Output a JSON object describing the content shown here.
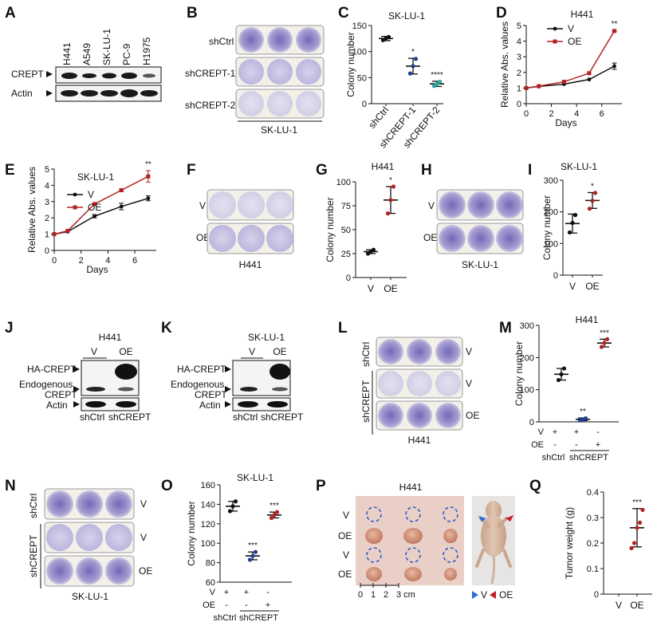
{
  "colors": {
    "V": "#111111",
    "OE": "#b22222",
    "sh1": "#1f3f8f",
    "sh2": "#2aa7a0",
    "stain": "#4b3f9c",
    "blueCircle": "#2b5cc8",
    "arrowBlue": "#2b6cd6",
    "arrowRed": "#c0202a"
  },
  "panels": {
    "A": "A",
    "B": "B",
    "C": "C",
    "D": "D",
    "E": "E",
    "F": "F",
    "G": "G",
    "H": "H",
    "I": "I",
    "J": "J",
    "K": "K",
    "L": "L",
    "M": "M",
    "N": "N",
    "O": "O",
    "P": "P",
    "Q": "Q"
  },
  "A": {
    "lanes": [
      "H441",
      "A549",
      "SK-LU-1",
      "PC-9",
      "H1975"
    ],
    "rows": [
      "CREPT",
      "Actin"
    ]
  },
  "B": {
    "rows": [
      "shCtrl",
      "shCREPT-1",
      "shCREPT-2"
    ],
    "cell": "SK-LU-1"
  },
  "F": {
    "rows": [
      "V",
      "OE"
    ],
    "cell": "H441"
  },
  "H": {
    "rows": [
      "V",
      "OE"
    ],
    "cell": "SK-LU-1"
  },
  "J": {
    "title": "H441",
    "lanes": [
      "V",
      "OE"
    ],
    "rows": [
      "HA-CREPT",
      "Endogenous CREPT",
      "Actin"
    ],
    "groups": [
      "shCtrl",
      "shCREPT"
    ],
    "bands": [
      "HA-CREPT",
      "Endogenous",
      "CREPT",
      "Actin"
    ]
  },
  "K": {
    "title": "SK-LU-1",
    "lanes": [
      "V",
      "OE"
    ],
    "rows": [
      "HA-CREPT",
      "Endogenous CREPT",
      "Actin"
    ],
    "groups": [
      "shCtrl",
      "shCREPT"
    ],
    "bands": [
      "HA-CREPT",
      "Endogenous",
      "CREPT",
      "Actin"
    ]
  },
  "L": {
    "groups": [
      "shCtrl",
      "shCREPT"
    ],
    "rows": [
      "V",
      "V",
      "OE"
    ],
    "cell": "H441"
  },
  "N": {
    "groups": [
      "shCtrl",
      "shCREPT"
    ],
    "rows": [
      "V",
      "V",
      "OE"
    ],
    "cell": "SK-LU-1"
  },
  "P": {
    "title": "H441",
    "rows": [
      "V",
      "OE",
      "V",
      "OE"
    ],
    "scale": [
      "0",
      "1",
      "2",
      "3 cm"
    ],
    "legend": [
      "V",
      "OE"
    ]
  },
  "chart_data": [
    {
      "panel": "C",
      "type": "scatter",
      "title": "SK-LU-1",
      "ylabel": "Colony number",
      "categories": [
        "shCtrl",
        "shCREPT-1",
        "shCREPT-2"
      ],
      "yticks": [
        0,
        50,
        100,
        150
      ],
      "ylim": [
        0,
        150
      ],
      "series": [
        {
          "name": "shCtrl",
          "mean": 125,
          "sd": 4,
          "points": [
            122,
            125,
            128
          ]
        },
        {
          "name": "shCREPT-1",
          "mean": 72,
          "sd": 15,
          "points": [
            58,
            72,
            86
          ]
        },
        {
          "name": "shCREPT-2",
          "mean": 38,
          "sd": 5,
          "points": [
            34,
            38,
            42
          ]
        }
      ],
      "sig": [
        "",
        "*",
        "****"
      ]
    },
    {
      "panel": "D",
      "type": "line",
      "title": "H441",
      "xlabel": "Days",
      "ylabel": "Relative Abs. values",
      "x": [
        0,
        1,
        3,
        5,
        7
      ],
      "xticks": [
        0,
        2,
        4,
        6
      ],
      "yticks": [
        0,
        1,
        2,
        3,
        4,
        5
      ],
      "ylim": [
        0,
        5
      ],
      "series": [
        {
          "name": "V",
          "values": [
            1.0,
            1.1,
            1.25,
            1.55,
            2.4
          ],
          "err": [
            0,
            0,
            0,
            0,
            0.2
          ]
        },
        {
          "name": "OE",
          "values": [
            1.0,
            1.12,
            1.4,
            1.95,
            4.65
          ],
          "err": [
            0,
            0,
            0,
            0,
            0.05
          ]
        }
      ],
      "sig": "**"
    },
    {
      "panel": "E",
      "type": "line",
      "title": "SK-LU-1",
      "xlabel": "Days",
      "ylabel": "Relative Abs. values",
      "x": [
        0,
        1,
        3,
        5,
        7
      ],
      "xticks": [
        0,
        2,
        4,
        6
      ],
      "yticks": [
        0,
        1,
        2,
        3,
        4,
        5
      ],
      "ylim": [
        0,
        5
      ],
      "series": [
        {
          "name": "V",
          "values": [
            1.0,
            1.15,
            2.1,
            2.7,
            3.2
          ],
          "err": [
            0,
            0,
            0.1,
            0.2,
            0.15
          ]
        },
        {
          "name": "OE",
          "values": [
            1.0,
            1.2,
            2.85,
            3.7,
            4.55
          ],
          "err": [
            0,
            0,
            0.05,
            0.05,
            0.35
          ]
        }
      ],
      "sig": "**"
    },
    {
      "panel": "G",
      "type": "scatter",
      "title": "H441",
      "ylabel": "Colony number",
      "categories": [
        "V",
        "OE"
      ],
      "yticks": [
        0,
        25,
        50,
        75,
        100
      ],
      "ylim": [
        0,
        100
      ],
      "series": [
        {
          "name": "V",
          "mean": 27,
          "sd": 2,
          "points": [
            25,
            27,
            29
          ]
        },
        {
          "name": "OE",
          "mean": 81,
          "sd": 14,
          "points": [
            67,
            81,
            95
          ]
        }
      ],
      "sig": [
        "",
        "*"
      ]
    },
    {
      "panel": "I",
      "type": "scatter",
      "title": "SK-LU-1",
      "ylabel": "Colony number",
      "categories": [
        "V",
        "OE"
      ],
      "yticks": [
        0,
        100,
        200,
        300
      ],
      "ylim": [
        0,
        300
      ],
      "series": [
        {
          "name": "V",
          "mean": 163,
          "sd": 30,
          "points": [
            135,
            165,
            190
          ]
        },
        {
          "name": "OE",
          "mean": 236,
          "sd": 25,
          "points": [
            210,
            235,
            260
          ]
        }
      ],
      "sig": [
        "",
        "*"
      ]
    },
    {
      "panel": "M",
      "type": "scatter",
      "title": "H441",
      "ylabel": "Colony number",
      "categories": [
        "shCtrl V",
        "shCREPT V",
        "shCREPT OE"
      ],
      "yticks": [
        0,
        100,
        200,
        300
      ],
      "ylim": [
        0,
        300
      ],
      "series": [
        {
          "name": "shCtrl V",
          "mean": 148,
          "sd": 18,
          "points": [
            130,
            148,
            166
          ]
        },
        {
          "name": "shCREPT V",
          "mean": 8,
          "sd": 4,
          "points": [
            5,
            8,
            11
          ]
        },
        {
          "name": "shCREPT OE",
          "mean": 245,
          "sd": 12,
          "points": [
            233,
            245,
            257
          ]
        }
      ],
      "sig": [
        "",
        "**",
        "***"
      ],
      "design": {
        "V": [
          "+",
          "+",
          "-"
        ],
        "OE": [
          "-",
          "-",
          "+"
        ],
        "groups": [
          "shCtrl",
          "shCREPT"
        ]
      }
    },
    {
      "panel": "O",
      "type": "scatter",
      "title": "SK-LU-1",
      "ylabel": "Colony number",
      "categories": [
        "shCtrl V",
        "shCREPT V",
        "shCREPT OE"
      ],
      "yticks": [
        60,
        80,
        100,
        120,
        140,
        160
      ],
      "ylim": [
        60,
        160
      ],
      "series": [
        {
          "name": "shCtrl V",
          "mean": 138,
          "sd": 5,
          "points": [
            133,
            138,
            143
          ]
        },
        {
          "name": "shCREPT V",
          "mean": 87,
          "sd": 4,
          "points": [
            83,
            87,
            91
          ]
        },
        {
          "name": "shCREPT OE",
          "mean": 129,
          "sd": 3,
          "points": [
            126,
            129,
            132
          ]
        }
      ],
      "sig": [
        "",
        "***",
        "***"
      ],
      "design": {
        "V": [
          "+",
          "+",
          "-"
        ],
        "OE": [
          "-",
          "-",
          "+"
        ],
        "groups": [
          "shCtrl",
          "shCREPT"
        ]
      }
    },
    {
      "panel": "Q",
      "type": "scatter",
      "ylabel": "Tumor weight (g)",
      "categories": [
        "V",
        "OE"
      ],
      "yticks": [
        0,
        0.1,
        0.2,
        0.3,
        0.4
      ],
      "ylim": [
        0,
        0.4
      ],
      "series": [
        {
          "name": "V",
          "mean": 0,
          "sd": 0,
          "points": []
        },
        {
          "name": "OE",
          "mean": 0.26,
          "sd": 0.075,
          "points": [
            0.18,
            0.2,
            0.26,
            0.28,
            0.33
          ]
        }
      ],
      "sig": [
        "",
        "***"
      ]
    }
  ]
}
